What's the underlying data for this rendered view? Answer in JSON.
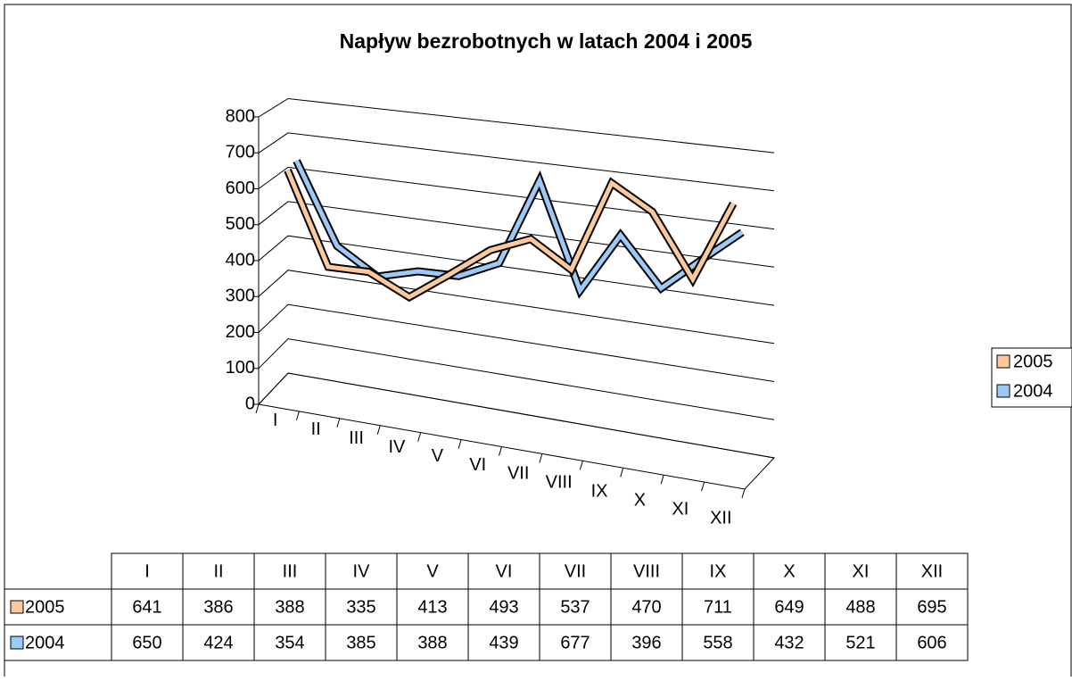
{
  "chart_data": {
    "type": "line3d",
    "title": "Napływ bezrobotnych w latach 2004 i 2005",
    "categories": [
      "I",
      "II",
      "III",
      "IV",
      "V",
      "VI",
      "VII",
      "VIII",
      "IX",
      "X",
      "XI",
      "XII"
    ],
    "series": [
      {
        "name": "2005",
        "color": "#fbc99c",
        "values": [
          641,
          386,
          388,
          335,
          413,
          493,
          537,
          470,
          711,
          649,
          488,
          695
        ]
      },
      {
        "name": "2004",
        "color": "#9cc9f5",
        "values": [
          650,
          424,
          354,
          385,
          388,
          439,
          677,
          396,
          558,
          432,
          521,
          606
        ]
      }
    ],
    "ylim": [
      0,
      800
    ],
    "yticks": [
      0,
      100,
      200,
      300,
      400,
      500,
      600,
      700,
      800
    ],
    "grid": true,
    "legend": "right"
  }
}
